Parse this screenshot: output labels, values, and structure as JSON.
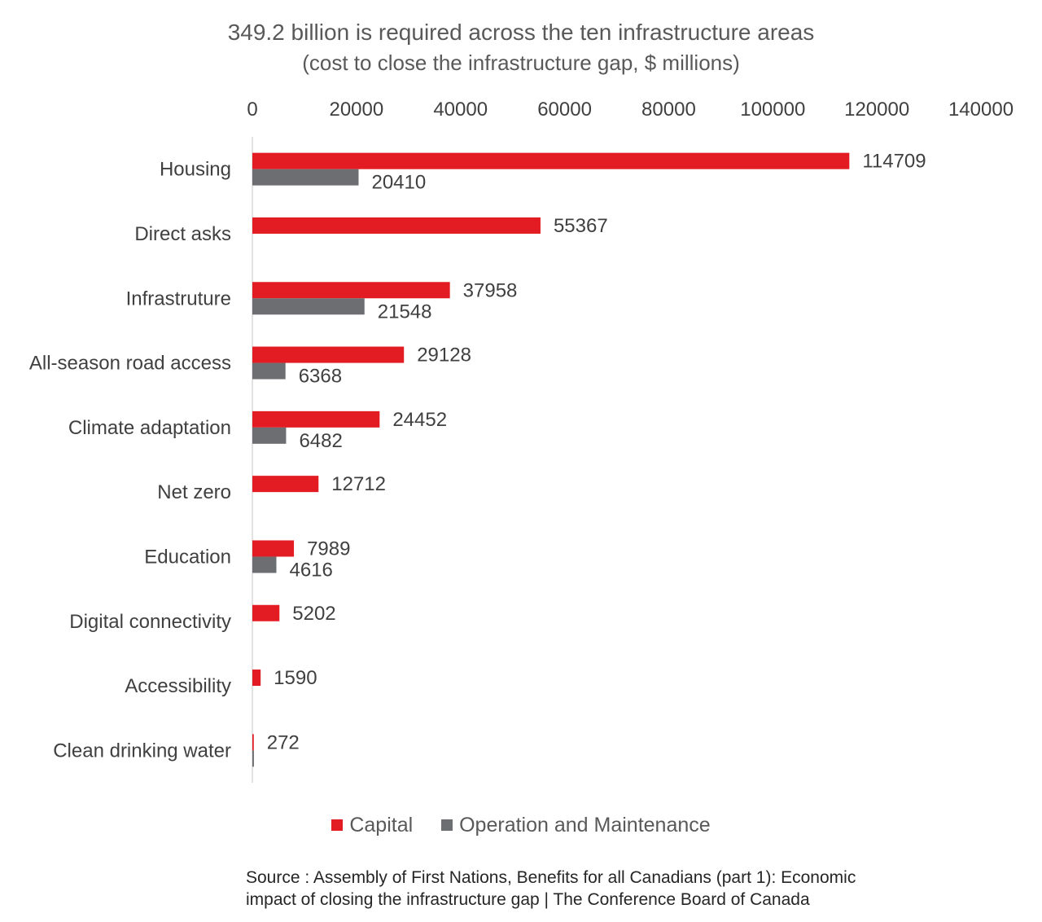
{
  "chart_data": {
    "type": "bar",
    "orientation": "horizontal",
    "title": "349.2 billion is required across the ten infrastructure areas",
    "subtitle": "(cost to close the infrastructure gap, $ millions)",
    "categories": [
      "Housing",
      "Direct asks",
      "Infrastruture",
      "All-season road access",
      "Climate adaptation",
      "Net zero",
      "Education",
      "Digital connectivity",
      "Accessibility",
      "Clean drinking water"
    ],
    "series": [
      {
        "name": "Capital",
        "color": "#e31b23",
        "values": [
          114709,
          55367,
          37958,
          29128,
          24452,
          12712,
          7989,
          5202,
          1590,
          272
        ],
        "labels": [
          "114709",
          "55367",
          "37958",
          "29128",
          "24452",
          "12712",
          "7989",
          "5202",
          "1590",
          "272"
        ]
      },
      {
        "name": "Operation and Maintenance",
        "color": "#6d6e71",
        "values": [
          20410,
          null,
          21548,
          6368,
          6482,
          null,
          4616,
          null,
          null,
          300
        ],
        "labels": [
          "20410",
          "",
          "21548",
          "6368",
          "6482",
          "",
          "4616",
          "",
          "",
          ""
        ]
      }
    ],
    "xlim": [
      0,
      140000
    ],
    "xticks": [
      "0",
      "20000",
      "40000",
      "60000",
      "80000",
      "100000",
      "120000",
      "140000"
    ],
    "axis_position": "top",
    "grid": false,
    "legend_position": "bottom"
  },
  "source": {
    "line1": "Source : Assembly of First Nations, Benefits for all Canadians (part 1): Economic",
    "line2": "impact of closing the infrastructure gap | The Conference Board of Canada"
  }
}
